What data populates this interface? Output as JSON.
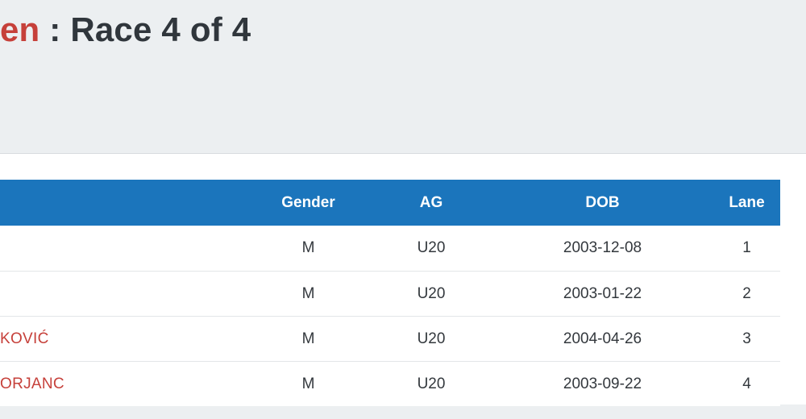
{
  "header": {
    "title_link_fragment": "en",
    "title_rest": " : Race 4 of 4"
  },
  "colors": {
    "accent_blue": "#1b75bc",
    "link_red": "#c6403a",
    "page_background": "#eceff1"
  },
  "table": {
    "columns": {
      "name": "",
      "gender": "Gender",
      "ag": "AG",
      "dob": "DOB",
      "lane": "Lane"
    },
    "rows": [
      {
        "name": "",
        "gender": "M",
        "ag": "U20",
        "dob": "2003-12-08",
        "lane": "1"
      },
      {
        "name": "",
        "gender": "M",
        "ag": "U20",
        "dob": "2003-01-22",
        "lane": "2"
      },
      {
        "name": "KOVIĆ",
        "gender": "M",
        "ag": "U20",
        "dob": "2004-04-26",
        "lane": "3"
      },
      {
        "name": "ORJANC",
        "gender": "M",
        "ag": "U20",
        "dob": "2003-09-22",
        "lane": "4"
      }
    ]
  }
}
